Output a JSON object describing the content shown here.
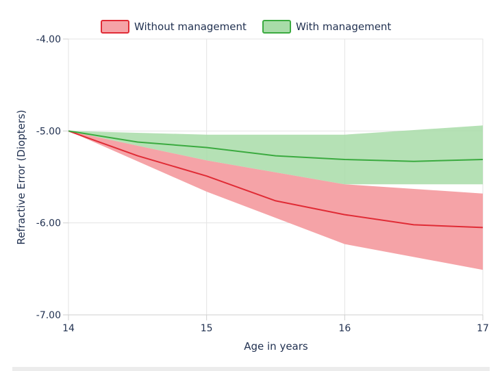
{
  "chart_data": {
    "type": "area",
    "xlabel": "Age in years",
    "ylabel": "Refractive Error (Diopters)",
    "xlim": [
      14,
      17
    ],
    "ylim": [
      -7,
      -4
    ],
    "x_ticks": [
      "14",
      "15",
      "16",
      "17"
    ],
    "y_ticks": [
      "-4.00",
      "-5.00",
      "-6.00",
      "-7.00"
    ],
    "grid": true,
    "legend_position": "top",
    "series": [
      {
        "name": "Without management",
        "color": "#e02b35",
        "band_color": "#f5a3a7",
        "mean": [
          [
            14,
            -5.0
          ],
          [
            14.5,
            -5.27
          ],
          [
            15,
            -5.49
          ],
          [
            15.5,
            -5.76
          ],
          [
            16,
            -5.91
          ],
          [
            16.5,
            -6.02
          ],
          [
            17,
            -6.05
          ]
        ],
        "lower": [
          [
            14,
            -5.0
          ],
          [
            15,
            -5.66
          ],
          [
            16,
            -6.23
          ],
          [
            17,
            -6.51
          ]
        ],
        "upper": [
          [
            14,
            -5.0
          ],
          [
            15,
            -5.32
          ],
          [
            16,
            -5.58
          ],
          [
            17,
            -5.68
          ]
        ]
      },
      {
        "name": "With management",
        "color": "#3aaa3f",
        "band_color": "#a8dca8",
        "mean": [
          [
            14,
            -5.0
          ],
          [
            14.5,
            -5.12
          ],
          [
            15,
            -5.18
          ],
          [
            15.5,
            -5.27
          ],
          [
            16,
            -5.31
          ],
          [
            16.5,
            -5.33
          ],
          [
            17,
            -5.31
          ]
        ],
        "lower": [
          [
            14,
            -5.0
          ],
          [
            15,
            -5.32
          ],
          [
            16,
            -5.58
          ],
          [
            17,
            -5.58
          ]
        ],
        "upper": [
          [
            14,
            -5.0
          ],
          [
            15,
            -5.04
          ],
          [
            16,
            -5.04
          ],
          [
            17,
            -4.94
          ]
        ]
      }
    ]
  }
}
